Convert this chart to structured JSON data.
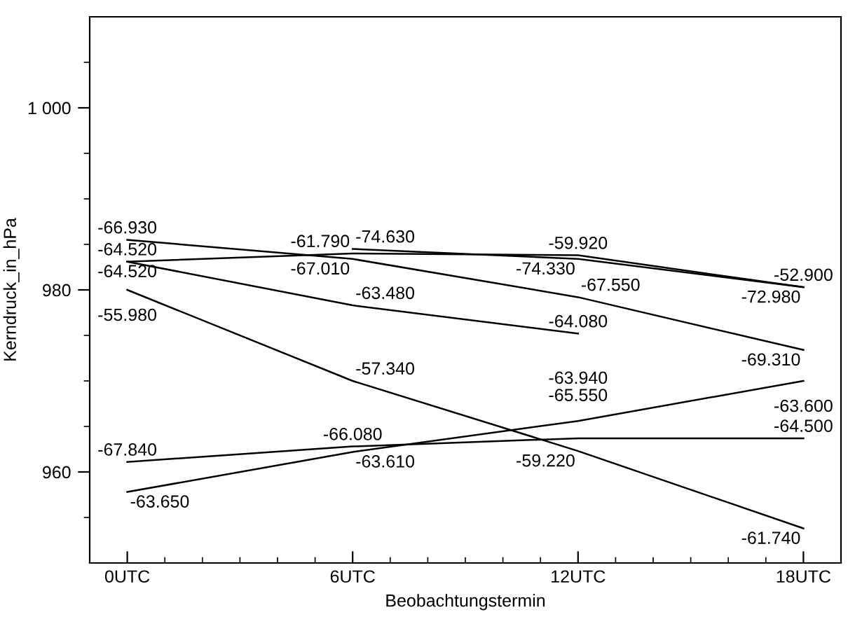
{
  "chart_data": {
    "type": "line",
    "xlabel": "Beobachtungstermin",
    "ylabel": "Kerndruck_in_hPa",
    "xlim": [
      -1,
      19
    ],
    "ylim": [
      950,
      1010
    ],
    "xticks": [
      {
        "value": 0,
        "label": "0UTC"
      },
      {
        "value": 1,
        "label": null
      },
      {
        "value": 2,
        "label": null
      },
      {
        "value": 3,
        "label": null
      },
      {
        "value": 4,
        "label": null
      },
      {
        "value": 5,
        "label": null
      },
      {
        "value": 6,
        "label": "6UTC"
      },
      {
        "value": 7,
        "label": null
      },
      {
        "value": 8,
        "label": null
      },
      {
        "value": 9,
        "label": null
      },
      {
        "value": 10,
        "label": null
      },
      {
        "value": 11,
        "label": null
      },
      {
        "value": 12,
        "label": "12UTC"
      },
      {
        "value": 13,
        "label": null
      },
      {
        "value": 14,
        "label": null
      },
      {
        "value": 15,
        "label": null
      },
      {
        "value": 16,
        "label": null
      },
      {
        "value": 17,
        "label": null
      },
      {
        "value": 18,
        "label": "18UTC"
      }
    ],
    "yticks": [
      {
        "value": 955,
        "label": null
      },
      {
        "value": 960,
        "label": "960"
      },
      {
        "value": 965,
        "label": null
      },
      {
        "value": 970,
        "label": null
      },
      {
        "value": 975,
        "label": null
      },
      {
        "value": 980,
        "label": "980"
      },
      {
        "value": 985,
        "label": null
      },
      {
        "value": 990,
        "label": null
      },
      {
        "value": 995,
        "label": null
      },
      {
        "value": 1000,
        "label": "1 000"
      },
      {
        "value": 1005,
        "label": null
      }
    ],
    "grid": false,
    "marker": "none",
    "line_style": "solid",
    "series": [
      {
        "color": "#000000",
        "x": [
          0,
          6,
          12,
          18
        ],
        "values": [
          985.5,
          983.4,
          979.2,
          973.4
        ]
      },
      {
        "color": "#000000",
        "x": [
          0,
          6,
          12,
          18
        ],
        "values": [
          983.1,
          984.0,
          983.8,
          980.3
        ]
      },
      {
        "color": "#000000",
        "x": [
          0,
          6,
          12
        ],
        "values": [
          983.1,
          978.3,
          975.2
        ]
      },
      {
        "color": "#000000",
        "x": [
          6,
          12,
          18
        ],
        "values": [
          984.5,
          983.4,
          980.3
        ]
      },
      {
        "color": "#000000",
        "x": [
          0,
          6,
          12,
          18
        ],
        "values": [
          980.0,
          970.0,
          962.3,
          953.8
        ]
      },
      {
        "color": "#000000",
        "x": [
          0,
          6,
          12,
          18
        ],
        "values": [
          961.1,
          962.8,
          963.7,
          963.7
        ]
      },
      {
        "color": "#000000",
        "x": [
          0,
          6,
          12,
          18
        ],
        "values": [
          957.8,
          962.2,
          965.6,
          970.0
        ]
      }
    ],
    "annotations": [
      {
        "text": "-66.930",
        "x": 0,
        "y": 985.5
      },
      {
        "text": "-67.010",
        "x": 6,
        "y": 983.4
      },
      {
        "text": "-67.550",
        "x": 12,
        "y": 979.2
      },
      {
        "text": "-69.310",
        "x": 18,
        "y": 973.4
      },
      {
        "text": "-64.520",
        "x": 0,
        "y": 983.1
      },
      {
        "text": "-61.790",
        "x": 6,
        "y": 984.0
      },
      {
        "text": "-59.920",
        "x": 12,
        "y": 983.8
      },
      {
        "text": "-52.900",
        "x": 18,
        "y": 980.3
      },
      {
        "text": "-64.520",
        "x": 0,
        "y": 983.1
      },
      {
        "text": "-63.480",
        "x": 6,
        "y": 978.3
      },
      {
        "text": "-64.080",
        "x": 12,
        "y": 975.2
      },
      {
        "text": "-74.630",
        "x": 6,
        "y": 984.5
      },
      {
        "text": "-74.330",
        "x": 12,
        "y": 983.4
      },
      {
        "text": "-72.980",
        "x": 18,
        "y": 980.3
      },
      {
        "text": "-55.980",
        "x": 0,
        "y": 980.0
      },
      {
        "text": "-57.340",
        "x": 6,
        "y": 970.0
      },
      {
        "text": "-59.220",
        "x": 12,
        "y": 962.3
      },
      {
        "text": "-61.740",
        "x": 18,
        "y": 953.8
      },
      {
        "text": "-67.840",
        "x": 0,
        "y": 961.1
      },
      {
        "text": "-66.080",
        "x": 6,
        "y": 962.8
      },
      {
        "text": "-65.550",
        "x": 12,
        "y": 963.7
      },
      {
        "text": "-64.500",
        "x": 18,
        "y": 963.7
      },
      {
        "text": "-63.650",
        "x": 0,
        "y": 957.8
      },
      {
        "text": "-63.610",
        "x": 6,
        "y": 962.2
      },
      {
        "text": "-63.940",
        "x": 12,
        "y": 965.6
      },
      {
        "text": "-63.600",
        "x": 18,
        "y": 970.0
      }
    ]
  }
}
